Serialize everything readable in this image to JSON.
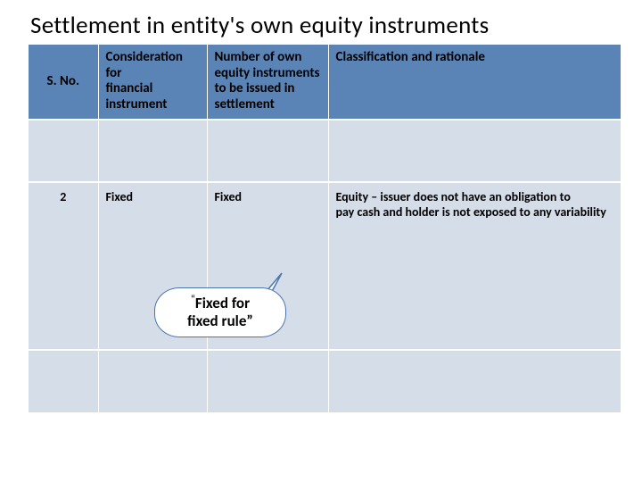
{
  "title": "Settlement in entity's own equity instruments",
  "columns": {
    "sno": "S. No.",
    "consideration": "Consideration for\nfinancial instrument",
    "number": "Number of own equity instruments to be issued in settlement",
    "classification": "Classification and rationale"
  },
  "row": {
    "sno": "2",
    "consideration": "Fixed",
    "number": "Fixed",
    "classification": "Equity – issuer does not have an obligation to\npay cash and holder is not exposed to any variability"
  },
  "callout": {
    "text_prefix": "“",
    "text_line1": "Fixed for",
    "text_line2": "fixed rule”"
  },
  "colors": {
    "header_bg": "#5a83b6",
    "cell_bg": "#d5dde8",
    "callout_border": "#4a76ad"
  }
}
